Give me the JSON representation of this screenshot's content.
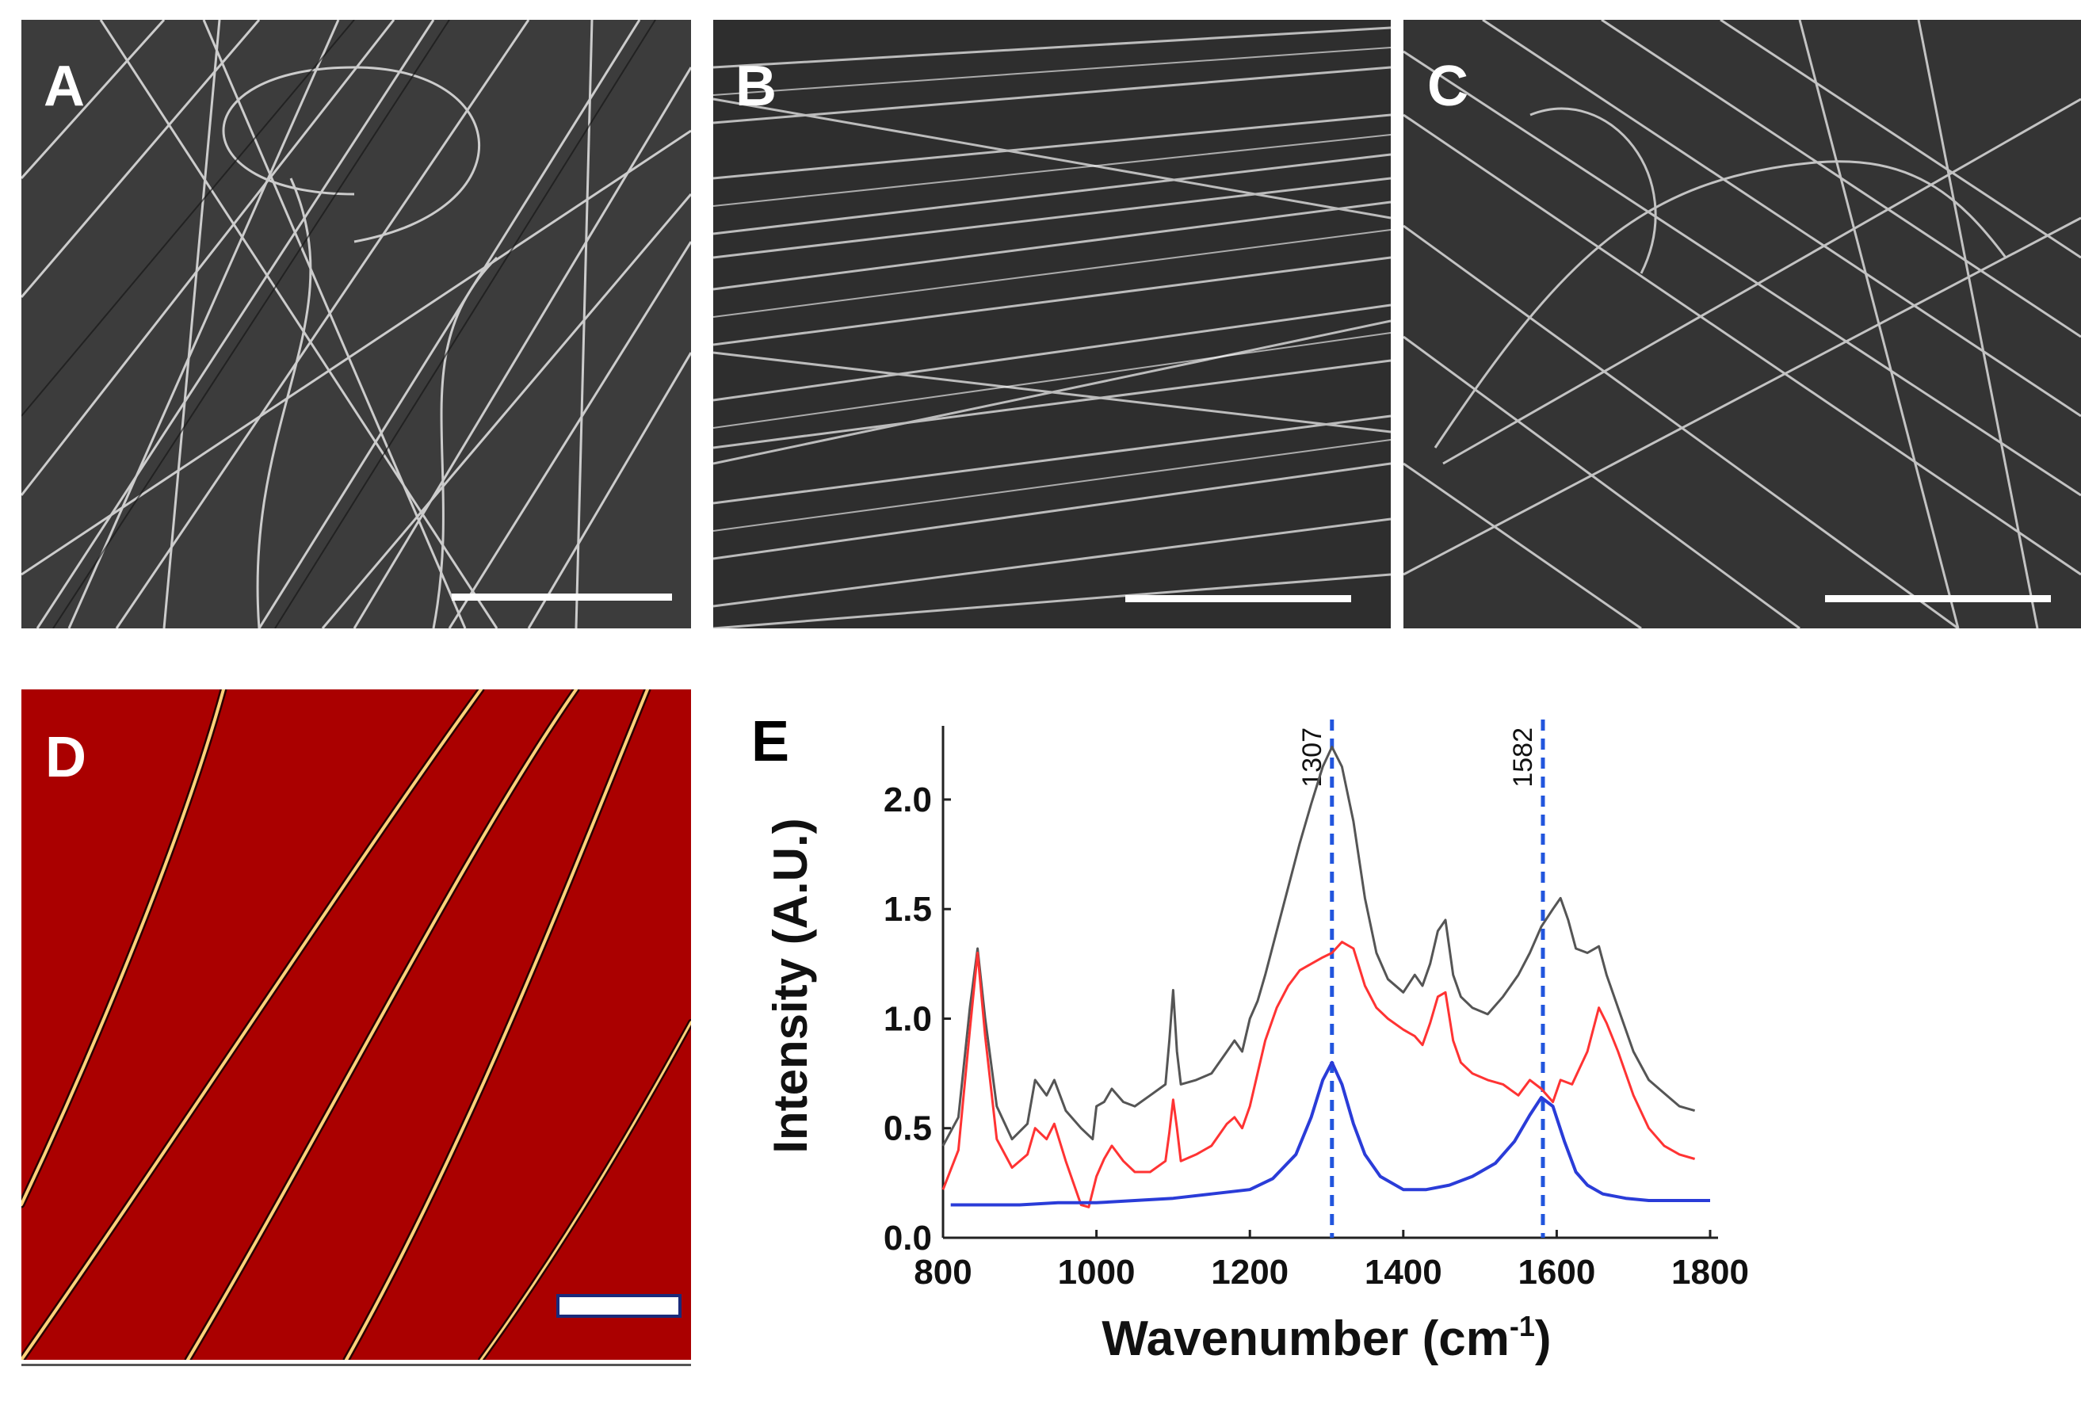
{
  "figure": {
    "panel_labels": {
      "a": "A",
      "b": "B",
      "c": "C",
      "d": "D",
      "e": "E"
    }
  },
  "chart_data": {
    "type": "line",
    "xlabel": "Wavenumber (cm",
    "xlabel_sup": "-1",
    "xlabel_close": ")",
    "ylabel": "Intensity (A.U.)",
    "xlim": [
      800,
      1800
    ],
    "ylim": [
      0.0,
      2.3
    ],
    "x_ticks": [
      "800",
      "1000",
      "1200",
      "1400",
      "1600",
      "1800"
    ],
    "y_ticks": [
      "0.0",
      "0.5",
      "1.0",
      "1.5",
      "2.0"
    ],
    "grid": false,
    "peak_markers": [
      {
        "x": 1307,
        "label": "1307"
      },
      {
        "x": 1582,
        "label": "1582"
      }
    ],
    "series": [
      {
        "color": "#555555",
        "x": [
          800,
          820,
          835,
          845,
          855,
          870,
          890,
          910,
          920,
          935,
          945,
          960,
          980,
          995,
          1000,
          1010,
          1020,
          1035,
          1050,
          1070,
          1090,
          1095,
          1100,
          1105,
          1110,
          1130,
          1150,
          1170,
          1180,
          1190,
          1200,
          1210,
          1220,
          1235,
          1250,
          1265,
          1280,
          1295,
          1307,
          1320,
          1335,
          1350,
          1365,
          1380,
          1400,
          1415,
          1425,
          1435,
          1445,
          1455,
          1465,
          1475,
          1490,
          1510,
          1530,
          1550,
          1565,
          1580,
          1595,
          1605,
          1615,
          1625,
          1640,
          1655,
          1665,
          1680,
          1700,
          1720,
          1740,
          1760,
          1780
        ],
        "values": [
          0.42,
          0.55,
          1.05,
          1.32,
          1.0,
          0.6,
          0.45,
          0.52,
          0.72,
          0.65,
          0.72,
          0.58,
          0.5,
          0.45,
          0.6,
          0.62,
          0.68,
          0.62,
          0.6,
          0.65,
          0.7,
          0.9,
          1.13,
          0.85,
          0.7,
          0.72,
          0.75,
          0.85,
          0.9,
          0.85,
          1.0,
          1.08,
          1.2,
          1.4,
          1.6,
          1.8,
          1.98,
          2.15,
          2.24,
          2.15,
          1.9,
          1.55,
          1.3,
          1.18,
          1.12,
          1.2,
          1.15,
          1.25,
          1.4,
          1.45,
          1.2,
          1.1,
          1.05,
          1.02,
          1.1,
          1.2,
          1.3,
          1.42,
          1.5,
          1.55,
          1.45,
          1.32,
          1.3,
          1.33,
          1.2,
          1.05,
          0.85,
          0.72,
          0.66,
          0.6,
          0.58
        ]
      },
      {
        "color": "#ff3333",
        "x": [
          800,
          820,
          835,
          845,
          855,
          870,
          890,
          910,
          920,
          935,
          945,
          960,
          980,
          990,
          1000,
          1010,
          1020,
          1035,
          1050,
          1070,
          1090,
          1095,
          1100,
          1105,
          1110,
          1130,
          1150,
          1170,
          1180,
          1190,
          1200,
          1210,
          1220,
          1235,
          1250,
          1265,
          1280,
          1295,
          1307,
          1320,
          1335,
          1350,
          1365,
          1380,
          1400,
          1415,
          1425,
          1435,
          1445,
          1455,
          1465,
          1475,
          1490,
          1510,
          1530,
          1550,
          1565,
          1580,
          1595,
          1605,
          1620,
          1640,
          1655,
          1665,
          1680,
          1700,
          1720,
          1740,
          1760,
          1780
        ],
        "values": [
          0.22,
          0.4,
          0.95,
          1.3,
          0.92,
          0.45,
          0.32,
          0.38,
          0.5,
          0.45,
          0.52,
          0.35,
          0.15,
          0.14,
          0.28,
          0.36,
          0.42,
          0.35,
          0.3,
          0.3,
          0.35,
          0.48,
          0.63,
          0.5,
          0.35,
          0.38,
          0.42,
          0.52,
          0.55,
          0.5,
          0.6,
          0.75,
          0.9,
          1.05,
          1.15,
          1.22,
          1.25,
          1.28,
          1.3,
          1.35,
          1.32,
          1.15,
          1.05,
          1.0,
          0.95,
          0.92,
          0.88,
          0.98,
          1.1,
          1.12,
          0.9,
          0.8,
          0.75,
          0.72,
          0.7,
          0.65,
          0.72,
          0.68,
          0.62,
          0.72,
          0.7,
          0.85,
          1.05,
          0.98,
          0.85,
          0.65,
          0.5,
          0.42,
          0.38,
          0.36
        ]
      },
      {
        "color": "#2a3cd8",
        "x": [
          810,
          850,
          900,
          950,
          1000,
          1050,
          1100,
          1150,
          1200,
          1230,
          1260,
          1280,
          1295,
          1307,
          1320,
          1335,
          1350,
          1370,
          1400,
          1430,
          1460,
          1490,
          1520,
          1545,
          1565,
          1580,
          1595,
          1610,
          1625,
          1640,
          1660,
          1690,
          1720,
          1760,
          1800
        ],
        "values": [
          0.15,
          0.15,
          0.15,
          0.16,
          0.16,
          0.17,
          0.18,
          0.2,
          0.22,
          0.27,
          0.38,
          0.55,
          0.72,
          0.8,
          0.7,
          0.52,
          0.38,
          0.28,
          0.22,
          0.22,
          0.24,
          0.28,
          0.34,
          0.44,
          0.56,
          0.64,
          0.6,
          0.44,
          0.3,
          0.24,
          0.2,
          0.18,
          0.17,
          0.17,
          0.17
        ]
      }
    ]
  }
}
